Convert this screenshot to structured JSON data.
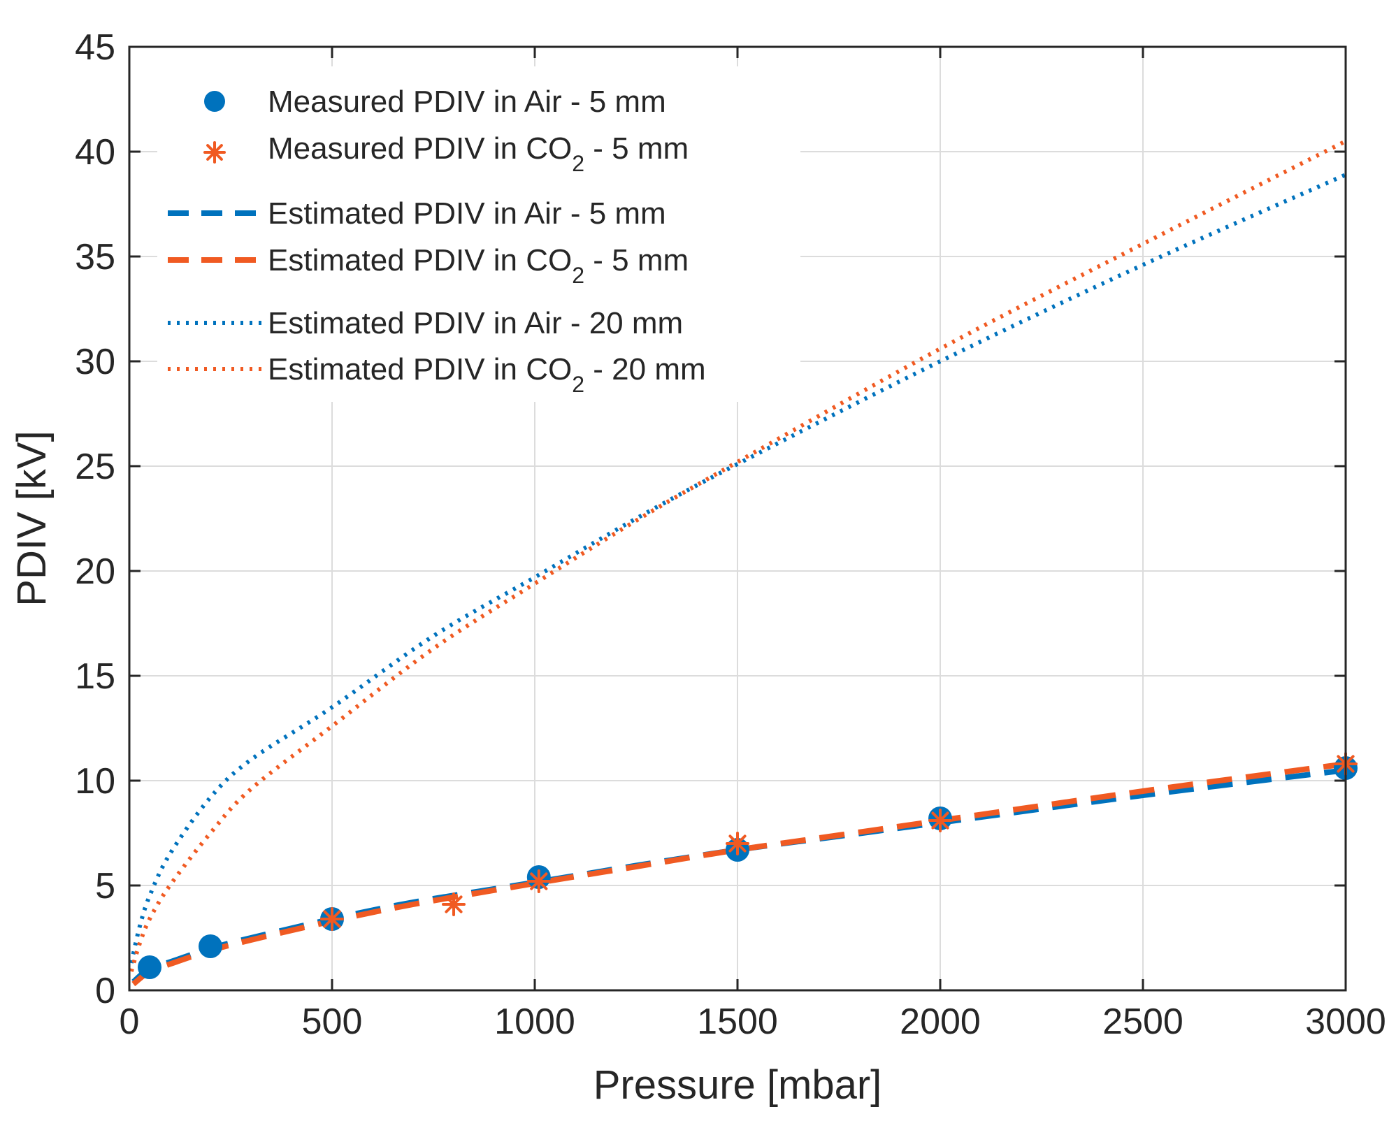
{
  "chart_data": {
    "type": "scatter",
    "title": "",
    "xlabel": "Pressure [mbar]",
    "ylabel": "PDIV [kV]",
    "xlim": [
      0,
      3000
    ],
    "ylim": [
      0,
      45
    ],
    "xticks": [
      0,
      500,
      1000,
      1500,
      2000,
      2500,
      3000
    ],
    "yticks": [
      0,
      5,
      10,
      15,
      20,
      25,
      30,
      35,
      40,
      45
    ],
    "grid": true,
    "legend_position": "top-left",
    "colors": {
      "blue": "#0072BD",
      "orange": "#F05A22"
    },
    "series": [
      {
        "name": "Measured PDIV in Air - 5 mm",
        "legend_main": "Measured PDIV in Air - 5 mm",
        "legend_sub": "",
        "legend_tail": "",
        "style": "marker-circle",
        "color": "#0072BD",
        "x": [
          50,
          200,
          500,
          1010,
          1500,
          2000,
          3000
        ],
        "y": [
          1.1,
          2.1,
          3.4,
          5.4,
          6.7,
          8.2,
          10.6
        ]
      },
      {
        "name": "Measured PDIV in CO2 - 5 mm",
        "legend_main": "Measured PDIV in CO",
        "legend_sub": "2",
        "legend_tail": " - 5 mm",
        "style": "marker-star",
        "color": "#F05A22",
        "x": [
          500,
          800,
          1010,
          1500,
          2000,
          3000
        ],
        "y": [
          3.4,
          4.1,
          5.2,
          7.0,
          8.1,
          10.8
        ]
      },
      {
        "name": "Estimated PDIV in Air - 5 mm",
        "legend_main": "Estimated PDIV in Air - 5 mm",
        "legend_sub": "",
        "legend_tail": "",
        "style": "dashed",
        "color": "#0072BD",
        "x": [
          10,
          50,
          100,
          200,
          300,
          500,
          700,
          1000,
          1250,
          1500,
          1750,
          2000,
          2500,
          3000
        ],
        "y": [
          0.4,
          1.05,
          1.35,
          2.0,
          2.5,
          3.4,
          4.2,
          5.15,
          5.95,
          6.7,
          7.35,
          8.0,
          9.3,
          10.5
        ]
      },
      {
        "name": "Estimated PDIV in CO2 - 5 mm",
        "legend_main": "Estimated PDIV in CO",
        "legend_sub": "2",
        "legend_tail": " - 5 mm",
        "style": "dashed",
        "color": "#F05A22",
        "x": [
          10,
          50,
          100,
          200,
          300,
          500,
          700,
          1000,
          1250,
          1500,
          1750,
          2000,
          2500,
          3000
        ],
        "y": [
          0.3,
          0.9,
          1.25,
          1.9,
          2.4,
          3.3,
          4.1,
          5.1,
          5.9,
          6.7,
          7.4,
          8.1,
          9.5,
          10.8
        ]
      },
      {
        "name": "Estimated PDIV in Air - 20 mm",
        "legend_main": "Estimated PDIV in Air - 20 mm",
        "legend_sub": "",
        "legend_tail": "",
        "style": "dotted",
        "color": "#0072BD",
        "x": [
          5,
          25,
          50,
          100,
          200,
          300,
          500,
          750,
          1000,
          1250,
          1500,
          2000,
          2500,
          3000
        ],
        "y": [
          1.3,
          3.0,
          4.5,
          6.5,
          9.2,
          11.0,
          13.5,
          16.9,
          19.7,
          22.5,
          25.1,
          30.0,
          34.6,
          38.9
        ]
      },
      {
        "name": "Estimated PDIV in CO2 - 20 mm",
        "legend_main": "Estimated PDIV in CO",
        "legend_sub": "2",
        "legend_tail": " - 20 mm",
        "style": "dotted",
        "color": "#F05A22",
        "x": [
          5,
          25,
          50,
          100,
          200,
          300,
          500,
          750,
          1000,
          1250,
          1500,
          2000,
          2500,
          3000
        ],
        "y": [
          0.9,
          2.2,
          3.4,
          5.0,
          7.5,
          9.6,
          12.6,
          16.3,
          19.4,
          22.4,
          25.2,
          30.6,
          35.6,
          40.5
        ]
      }
    ]
  }
}
